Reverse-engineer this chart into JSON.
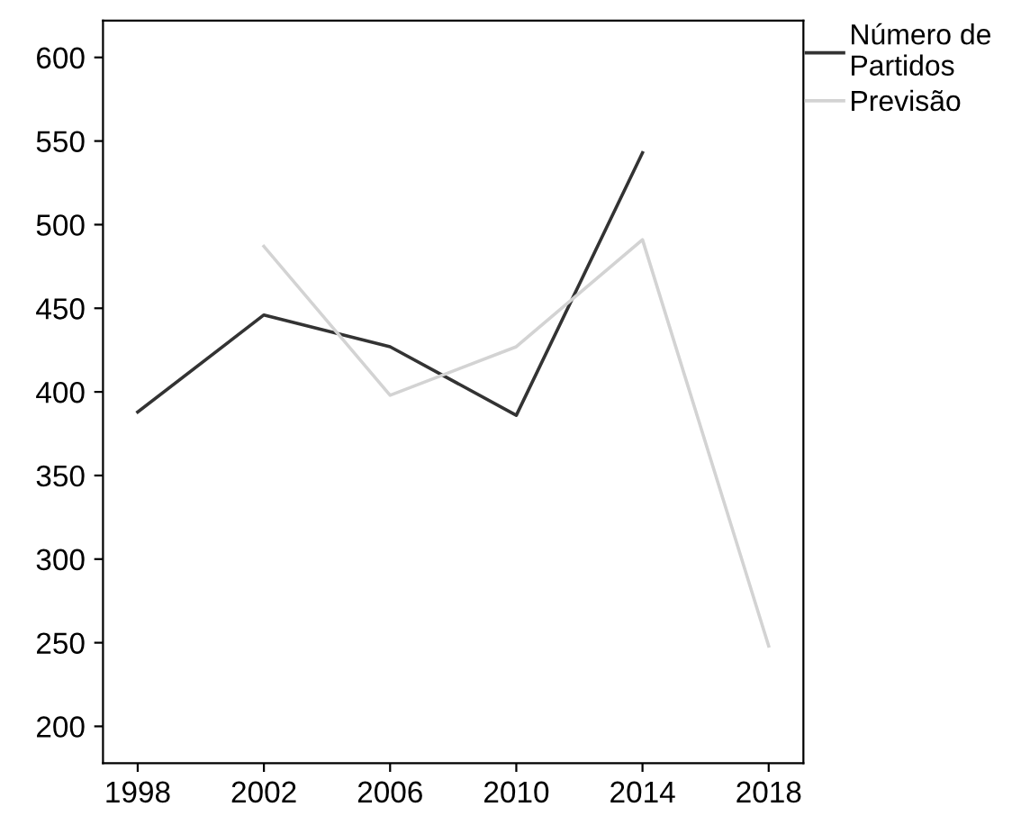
{
  "chart_data": {
    "type": "line",
    "xlim": [
      1996.9,
      2019.1
    ],
    "xticks": [
      1998,
      2002,
      2006,
      2010,
      2014,
      2018
    ],
    "ylim": [
      178,
      622
    ],
    "yticks": [
      200,
      250,
      300,
      350,
      400,
      450,
      500,
      550,
      600
    ],
    "grid": false,
    "legend": "top right",
    "marker": "none",
    "line_style": "solid",
    "series": [
      {
        "name": "Número de\nPartidos",
        "color": "#333333",
        "x": [
          1998,
          2002,
          2006,
          2010,
          2014
        ],
        "values": [
          388,
          446,
          427,
          386,
          543
        ]
      },
      {
        "name": "Previsão",
        "color": "#d3d3d3",
        "x": [
          2002,
          2006,
          2010,
          2014,
          2018
        ],
        "values": [
          487,
          398,
          427,
          491,
          248
        ]
      }
    ]
  }
}
